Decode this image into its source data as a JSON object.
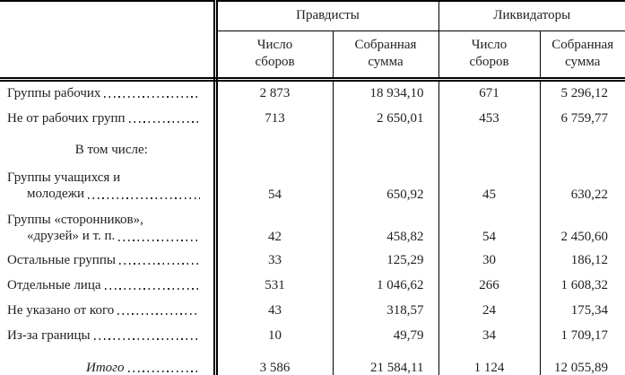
{
  "page": {
    "background": "#ffffff",
    "text_color": "#1f1f1f",
    "line_color": "#000000"
  },
  "table": {
    "group_headers": [
      "Правдисты",
      "Ликвидаторы"
    ],
    "sub_headers": [
      "Число\nсборов",
      "Собранная\nсумма",
      "Число\nсборов",
      "Собранная\nсумма"
    ],
    "rows": [
      {
        "type": "data",
        "label_lines": [
          "Группы рабочих"
        ],
        "values": [
          "2 873",
          "18 934,10",
          "671",
          "5 296,12"
        ]
      },
      {
        "type": "data",
        "label_lines": [
          "Не от рабочих групп"
        ],
        "values": [
          "713",
          "2 650,01",
          "453",
          "6 759,77"
        ]
      },
      {
        "type": "section",
        "label": "В том числе:",
        "values": [
          "",
          "",
          "",
          ""
        ]
      },
      {
        "type": "data",
        "label_lines": [
          "Группы учащихся и",
          "молодежи"
        ],
        "values": [
          "54",
          "650,92",
          "45",
          "630,22"
        ]
      },
      {
        "type": "data",
        "label_lines": [
          "Группы «сторонников»,",
          "«друзей» и т. п."
        ],
        "values": [
          "42",
          "458,82",
          "54",
          "2 450,60"
        ]
      },
      {
        "type": "data",
        "label_lines": [
          "Остальные группы"
        ],
        "values": [
          "33",
          "125,29",
          "30",
          "186,12"
        ]
      },
      {
        "type": "data",
        "label_lines": [
          "Отдельные лица"
        ],
        "values": [
          "531",
          "1 046,62",
          "266",
          "1 608,32"
        ]
      },
      {
        "type": "data",
        "label_lines": [
          "Не указано от кого"
        ],
        "values": [
          "43",
          "318,57",
          "24",
          "175,34"
        ]
      },
      {
        "type": "data",
        "label_lines": [
          "Из-за границы"
        ],
        "values": [
          "10",
          "49,79",
          "34",
          "1 709,17"
        ]
      },
      {
        "type": "total",
        "label": "Итого",
        "values": [
          "3 586",
          "21 584,11",
          "1 124",
          "12 055,89"
        ]
      }
    ]
  }
}
